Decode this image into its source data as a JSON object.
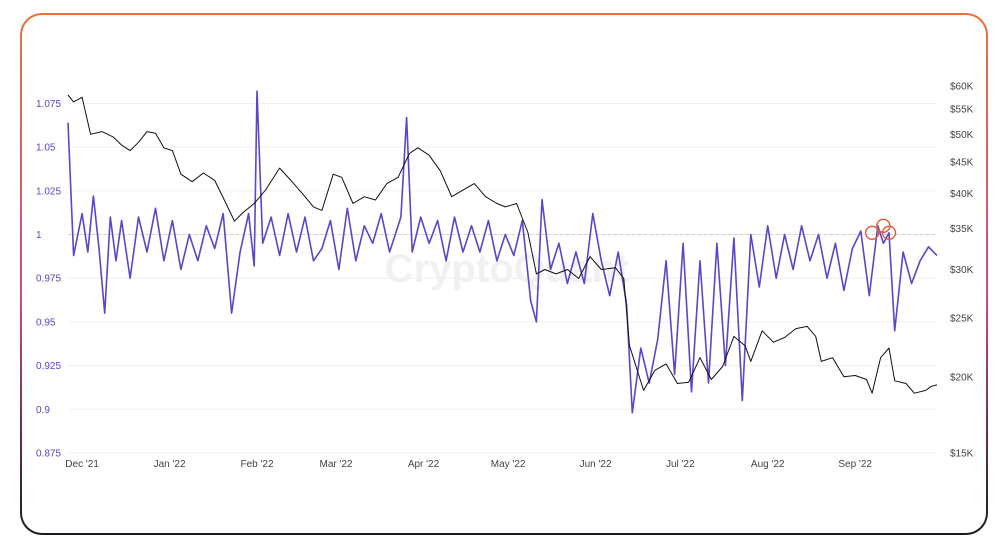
{
  "chart_data": {
    "type": "line",
    "title": "",
    "watermark": "CryptoQuant",
    "x_start": "2021-11-26",
    "x_end": "2022-09-30",
    "x_ticks": [
      "Dec '21",
      "Jan '22",
      "Feb '22",
      "Mar '22",
      "Apr '22",
      "May '22",
      "Jun '22",
      "Jul '22",
      "Aug '22",
      "Sep '22"
    ],
    "x_tick_dates": [
      "2021-12-01",
      "2022-01-01",
      "2022-02-01",
      "2022-03-01",
      "2022-04-01",
      "2022-05-01",
      "2022-06-01",
      "2022-07-01",
      "2022-08-01",
      "2022-09-01"
    ],
    "left_axis": {
      "ticks": [
        "0.875",
        "0.9",
        "0.925",
        "0.95",
        "0.975",
        "1",
        "1.025",
        "1.05",
        "1.075"
      ],
      "ylim": [
        0.875,
        1.085
      ],
      "color": "#5b46c8",
      "reference_line": 1
    },
    "right_axis": {
      "scale": "log",
      "ticks": [
        "$15K",
        "$20K",
        "$25K",
        "$30K",
        "$35K",
        "$40K",
        "$45K",
        "$50K",
        "$55K",
        "$60K"
      ],
      "tick_values": [
        15000,
        20000,
        25000,
        30000,
        35000,
        40000,
        45000,
        50000,
        55000,
        60000
      ],
      "ylim": [
        15000,
        60000
      ],
      "color": "#111111"
    },
    "series": [
      {
        "axis": "left",
        "color": "#5b46c8",
        "points": [
          [
            "2021-11-26",
            1.064
          ],
          [
            "2021-11-28",
            0.988
          ],
          [
            "2021-12-01",
            1.012
          ],
          [
            "2021-12-03",
            0.99
          ],
          [
            "2021-12-05",
            1.022
          ],
          [
            "2021-12-07",
            0.992
          ],
          [
            "2021-12-09",
            0.955
          ],
          [
            "2021-12-11",
            1.01
          ],
          [
            "2021-12-13",
            0.985
          ],
          [
            "2021-12-15",
            1.008
          ],
          [
            "2021-12-18",
            0.975
          ],
          [
            "2021-12-21",
            1.01
          ],
          [
            "2021-12-24",
            0.99
          ],
          [
            "2021-12-27",
            1.015
          ],
          [
            "2021-12-30",
            0.985
          ],
          [
            "2022-01-02",
            1.008
          ],
          [
            "2022-01-05",
            0.98
          ],
          [
            "2022-01-08",
            1.0
          ],
          [
            "2022-01-11",
            0.985
          ],
          [
            "2022-01-14",
            1.005
          ],
          [
            "2022-01-17",
            0.992
          ],
          [
            "2022-01-20",
            1.012
          ],
          [
            "2022-01-23",
            0.955
          ],
          [
            "2022-01-26",
            0.99
          ],
          [
            "2022-01-29",
            1.012
          ],
          [
            "2022-01-31",
            0.982
          ],
          [
            "2022-02-01",
            1.082
          ],
          [
            "2022-02-03",
            0.995
          ],
          [
            "2022-02-06",
            1.01
          ],
          [
            "2022-02-09",
            0.988
          ],
          [
            "2022-02-12",
            1.012
          ],
          [
            "2022-02-15",
            0.99
          ],
          [
            "2022-02-18",
            1.01
          ],
          [
            "2022-02-21",
            0.985
          ],
          [
            "2022-02-24",
            0.992
          ],
          [
            "2022-02-27",
            1.008
          ],
          [
            "2022-03-02",
            0.98
          ],
          [
            "2022-03-05",
            1.015
          ],
          [
            "2022-03-08",
            0.985
          ],
          [
            "2022-03-11",
            1.005
          ],
          [
            "2022-03-14",
            0.995
          ],
          [
            "2022-03-17",
            1.012
          ],
          [
            "2022-03-20",
            0.99
          ],
          [
            "2022-03-24",
            1.01
          ],
          [
            "2022-03-26",
            1.067
          ],
          [
            "2022-03-28",
            0.99
          ],
          [
            "2022-03-31",
            1.01
          ],
          [
            "2022-04-03",
            0.995
          ],
          [
            "2022-04-06",
            1.008
          ],
          [
            "2022-04-09",
            0.985
          ],
          [
            "2022-04-12",
            1.01
          ],
          [
            "2022-04-15",
            0.99
          ],
          [
            "2022-04-18",
            1.005
          ],
          [
            "2022-04-21",
            0.99
          ],
          [
            "2022-04-24",
            1.008
          ],
          [
            "2022-04-27",
            0.985
          ],
          [
            "2022-04-30",
            1.0
          ],
          [
            "2022-05-03",
            0.988
          ],
          [
            "2022-05-06",
            1.008
          ],
          [
            "2022-05-09",
            0.962
          ],
          [
            "2022-05-11",
            0.95
          ],
          [
            "2022-05-13",
            1.02
          ],
          [
            "2022-05-16",
            0.98
          ],
          [
            "2022-05-19",
            0.995
          ],
          [
            "2022-05-22",
            0.972
          ],
          [
            "2022-05-25",
            0.99
          ],
          [
            "2022-05-28",
            0.972
          ],
          [
            "2022-05-31",
            1.012
          ],
          [
            "2022-06-03",
            0.985
          ],
          [
            "2022-06-06",
            0.965
          ],
          [
            "2022-06-09",
            0.99
          ],
          [
            "2022-06-12",
            0.96
          ],
          [
            "2022-06-14",
            0.898
          ],
          [
            "2022-06-17",
            0.935
          ],
          [
            "2022-06-20",
            0.915
          ],
          [
            "2022-06-23",
            0.94
          ],
          [
            "2022-06-26",
            0.985
          ],
          [
            "2022-06-29",
            0.92
          ],
          [
            "2022-07-02",
            0.995
          ],
          [
            "2022-07-05",
            0.91
          ],
          [
            "2022-07-08",
            0.985
          ],
          [
            "2022-07-11",
            0.915
          ],
          [
            "2022-07-14",
            0.995
          ],
          [
            "2022-07-17",
            0.925
          ],
          [
            "2022-07-20",
            0.998
          ],
          [
            "2022-07-23",
            0.905
          ],
          [
            "2022-07-26",
            1.0
          ],
          [
            "2022-07-29",
            0.97
          ],
          [
            "2022-08-01",
            1.005
          ],
          [
            "2022-08-04",
            0.975
          ],
          [
            "2022-08-07",
            1.0
          ],
          [
            "2022-08-10",
            0.98
          ],
          [
            "2022-08-13",
            1.005
          ],
          [
            "2022-08-16",
            0.985
          ],
          [
            "2022-08-19",
            1.0
          ],
          [
            "2022-08-22",
            0.975
          ],
          [
            "2022-08-25",
            0.995
          ],
          [
            "2022-08-28",
            0.968
          ],
          [
            "2022-08-31",
            0.992
          ],
          [
            "2022-09-03",
            1.002
          ],
          [
            "2022-09-06",
            0.965
          ],
          [
            "2022-09-09",
            1.005
          ],
          [
            "2022-09-11",
            0.995
          ],
          [
            "2022-09-13",
            1.001
          ],
          [
            "2022-09-15",
            0.945
          ],
          [
            "2022-09-18",
            0.99
          ],
          [
            "2022-09-21",
            0.972
          ],
          [
            "2022-09-24",
            0.985
          ],
          [
            "2022-09-27",
            0.993
          ],
          [
            "2022-09-30",
            0.988
          ]
        ]
      },
      {
        "axis": "right",
        "color": "#111111",
        "points": [
          [
            "2021-11-26",
            58000
          ],
          [
            "2021-11-28",
            56500
          ],
          [
            "2021-12-01",
            57500
          ],
          [
            "2021-12-04",
            50000
          ],
          [
            "2021-12-08",
            50500
          ],
          [
            "2021-12-12",
            49500
          ],
          [
            "2021-12-15",
            48000
          ],
          [
            "2021-12-18",
            47000
          ],
          [
            "2021-12-21",
            48500
          ],
          [
            "2021-12-24",
            50500
          ],
          [
            "2021-12-27",
            50200
          ],
          [
            "2021-12-30",
            47500
          ],
          [
            "2022-01-02",
            47000
          ],
          [
            "2022-01-05",
            43000
          ],
          [
            "2022-01-09",
            41800
          ],
          [
            "2022-01-13",
            43200
          ],
          [
            "2022-01-17",
            42000
          ],
          [
            "2022-01-21",
            38500
          ],
          [
            "2022-01-24",
            36000
          ],
          [
            "2022-01-27",
            37200
          ],
          [
            "2022-01-31",
            38500
          ],
          [
            "2022-02-04",
            40500
          ],
          [
            "2022-02-09",
            44000
          ],
          [
            "2022-02-13",
            42000
          ],
          [
            "2022-02-17",
            40000
          ],
          [
            "2022-02-21",
            38000
          ],
          [
            "2022-02-24",
            37500
          ],
          [
            "2022-02-28",
            43000
          ],
          [
            "2022-03-03",
            42500
          ],
          [
            "2022-03-07",
            38500
          ],
          [
            "2022-03-11",
            39500
          ],
          [
            "2022-03-15",
            39000
          ],
          [
            "2022-03-19",
            41500
          ],
          [
            "2022-03-23",
            42500
          ],
          [
            "2022-03-27",
            46500
          ],
          [
            "2022-03-30",
            47500
          ],
          [
            "2022-04-03",
            46200
          ],
          [
            "2022-04-07",
            43500
          ],
          [
            "2022-04-11",
            39500
          ],
          [
            "2022-04-15",
            40500
          ],
          [
            "2022-04-19",
            41500
          ],
          [
            "2022-04-23",
            39500
          ],
          [
            "2022-04-27",
            38500
          ],
          [
            "2022-04-30",
            38000
          ],
          [
            "2022-05-04",
            38500
          ],
          [
            "2022-05-08",
            34500
          ],
          [
            "2022-05-11",
            29500
          ],
          [
            "2022-05-14",
            30000
          ],
          [
            "2022-05-18",
            29500
          ],
          [
            "2022-05-22",
            30000
          ],
          [
            "2022-05-26",
            29000
          ],
          [
            "2022-05-30",
            31500
          ],
          [
            "2022-06-03",
            30000
          ],
          [
            "2022-06-08",
            30200
          ],
          [
            "2022-06-11",
            29000
          ],
          [
            "2022-06-13",
            22500
          ],
          [
            "2022-06-18",
            19000
          ],
          [
            "2022-06-22",
            20500
          ],
          [
            "2022-06-26",
            21000
          ],
          [
            "2022-06-30",
            19500
          ],
          [
            "2022-07-04",
            19600
          ],
          [
            "2022-07-08",
            21500
          ],
          [
            "2022-07-12",
            19800
          ],
          [
            "2022-07-16",
            20800
          ],
          [
            "2022-07-20",
            23300
          ],
          [
            "2022-07-24",
            22500
          ],
          [
            "2022-07-26",
            21200
          ],
          [
            "2022-07-30",
            23800
          ],
          [
            "2022-08-03",
            22800
          ],
          [
            "2022-08-07",
            23200
          ],
          [
            "2022-08-11",
            24000
          ],
          [
            "2022-08-15",
            24200
          ],
          [
            "2022-08-18",
            23300
          ],
          [
            "2022-08-20",
            21200
          ],
          [
            "2022-08-24",
            21500
          ],
          [
            "2022-08-28",
            20000
          ],
          [
            "2022-09-01",
            20100
          ],
          [
            "2022-09-05",
            19800
          ],
          [
            "2022-09-07",
            18800
          ],
          [
            "2022-09-10",
            21500
          ],
          [
            "2022-09-13",
            22300
          ],
          [
            "2022-09-15",
            19700
          ],
          [
            "2022-09-19",
            19500
          ],
          [
            "2022-09-22",
            18800
          ],
          [
            "2022-09-26",
            19000
          ],
          [
            "2022-09-28",
            19300
          ],
          [
            "2022-09-30",
            19400
          ]
        ]
      }
    ],
    "annotations": [
      {
        "type": "circle",
        "date": "2022-09-07",
        "value": 1.001,
        "color": "#e05a3a"
      },
      {
        "type": "circle",
        "date": "2022-09-11",
        "value": 1.005,
        "color": "#e05a3a"
      },
      {
        "type": "circle",
        "date": "2022-09-13",
        "value": 1.001,
        "color": "#e05a3a"
      }
    ]
  }
}
